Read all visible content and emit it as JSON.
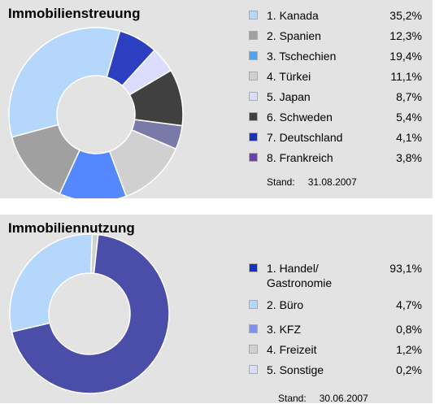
{
  "chart_data": [
    {
      "type": "pie",
      "title": "Immobilienstreuung",
      "categories": [
        "1. Kanada",
        "2. Spanien",
        "3. Tschechien",
        "4. Türkei",
        "5. Japan",
        "6. Schweden",
        "7. Deutschland",
        "8. Frankreich"
      ],
      "values": [
        35.2,
        12.3,
        19.4,
        11.1,
        8.7,
        5.4,
        4.1,
        3.8
      ],
      "value_labels": [
        "35,2%",
        "12,3%",
        "19,4%",
        "11,1%",
        "8,7%",
        "5,4%",
        "4,1%",
        "3,8%"
      ],
      "legend_colors": [
        "#b4d7fb",
        "#a0a0a0",
        "#4fa3ef",
        "#d0d0d0",
        "#dcdcff",
        "#404040",
        "#1e2eb8",
        "#6c40b0"
      ],
      "ring_segments": [
        {
          "value": 7.3,
          "color": "#2b3fc0"
        },
        {
          "value": 4.8,
          "color": "#dcdcff"
        },
        {
          "value": 10.5,
          "color": "#404040"
        },
        {
          "value": 4.4,
          "color": "#7a7aa8"
        },
        {
          "value": 12.9,
          "color": "#d0d0d0"
        },
        {
          "value": 12.5,
          "color": "#5588ff"
        },
        {
          "value": 14.0,
          "color": "#a0a0a0"
        },
        {
          "value": 33.6,
          "color": "#b4d7fb"
        }
      ],
      "start_angle_deg": 74,
      "legend": "right",
      "stand_label": "Stand:",
      "stand_date": "31.08.2007"
    },
    {
      "type": "pie",
      "title": "Immobiliennutzung",
      "categories": [
        "1. Handel/\nGastronomie",
        "2. Büro",
        "3. KFZ",
        "4. Freizeit",
        "5. Sonstige"
      ],
      "values": [
        93.1,
        4.7,
        0.8,
        1.2,
        0.2
      ],
      "value_labels": [
        "93,1%",
        "4,7%",
        "0,8%",
        "1,2%",
        "0,2%"
      ],
      "legend_colors": [
        "#1a2fc4",
        "#b4d7fb",
        "#8090ee",
        "#d0d0d0",
        "#dcdcff"
      ],
      "ring_segments": [
        {
          "value": 1.2,
          "color": "#d0d0d0"
        },
        {
          "value": 69.6,
          "color": "#4a4ea8"
        },
        {
          "value": 29.2,
          "color": "#b4d7fb"
        }
      ],
      "start_angle_deg": 88,
      "legend": "right",
      "stand_label": "Stand:",
      "stand_date": "30.06.2007"
    }
  ]
}
